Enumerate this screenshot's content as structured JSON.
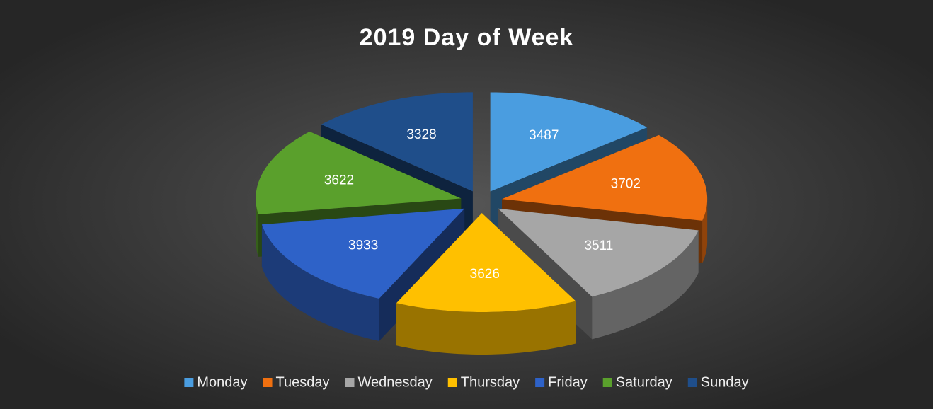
{
  "chart_data": {
    "type": "pie3d",
    "title": "2019 Day of Week",
    "categories": [
      "Monday",
      "Tuesday",
      "Wednesday",
      "Thursday",
      "Friday",
      "Saturday",
      "Sunday"
    ],
    "values": [
      3487,
      3702,
      3511,
      3626,
      3933,
      3622,
      3328
    ],
    "colors": [
      "#4a9de0",
      "#f07010",
      "#a6a6a6",
      "#ffc000",
      "#2e62c8",
      "#5aa02c",
      "#1f4e8a"
    ],
    "legend": "bottom"
  }
}
